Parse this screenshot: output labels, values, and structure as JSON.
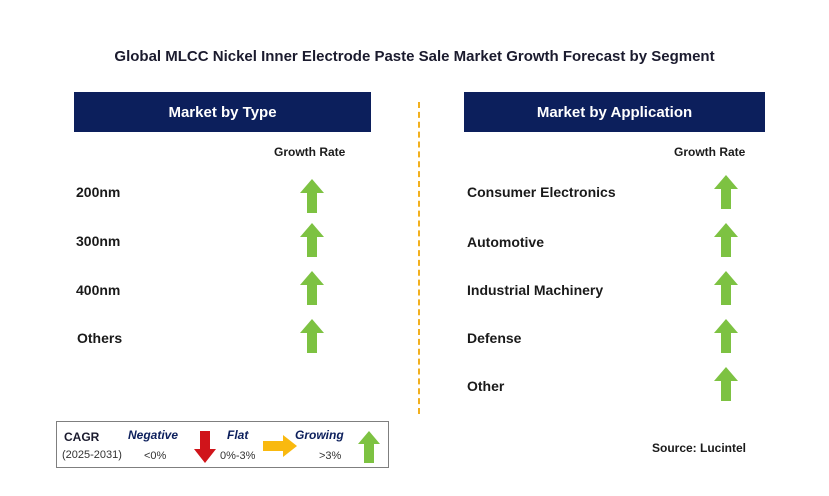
{
  "title": "Global MLCC Nickel Inner Electrode Paste Sale Market Growth Forecast by Segment",
  "type_panel": {
    "header": "Market by Type",
    "growth_label": "Growth Rate",
    "items": [
      {
        "label": "200nm",
        "trend": "growing"
      },
      {
        "label": "300nm",
        "trend": "growing"
      },
      {
        "label": "400nm",
        "trend": "growing"
      },
      {
        "label": "Others",
        "trend": "growing"
      }
    ]
  },
  "application_panel": {
    "header": "Market by Application",
    "growth_label": "Growth Rate",
    "items": [
      {
        "label": "Consumer Electronics",
        "trend": "growing"
      },
      {
        "label": "Automotive",
        "trend": "growing"
      },
      {
        "label": "Industrial Machinery",
        "trend": "growing"
      },
      {
        "label": "Defense",
        "trend": "growing"
      },
      {
        "label": "Other",
        "trend": "growing"
      }
    ]
  },
  "legend": {
    "cagr": "CAGR",
    "period": "(2025-2031)",
    "negative": {
      "label": "Negative",
      "range": "<0%",
      "icon": "red-down-arrow-icon"
    },
    "flat": {
      "label": "Flat",
      "range": "0%-3%",
      "icon": "orange-right-arrow-icon"
    },
    "growing": {
      "label": "Growing",
      "range": ">3%",
      "icon": "green-up-arrow-icon"
    }
  },
  "source": "Source: Lucintel",
  "colors": {
    "header_bg": "#0c1f5c",
    "growing": "#7dc242",
    "negative": "#d0141a",
    "flat": "#f9b90f",
    "divider": "#f2b01e"
  }
}
